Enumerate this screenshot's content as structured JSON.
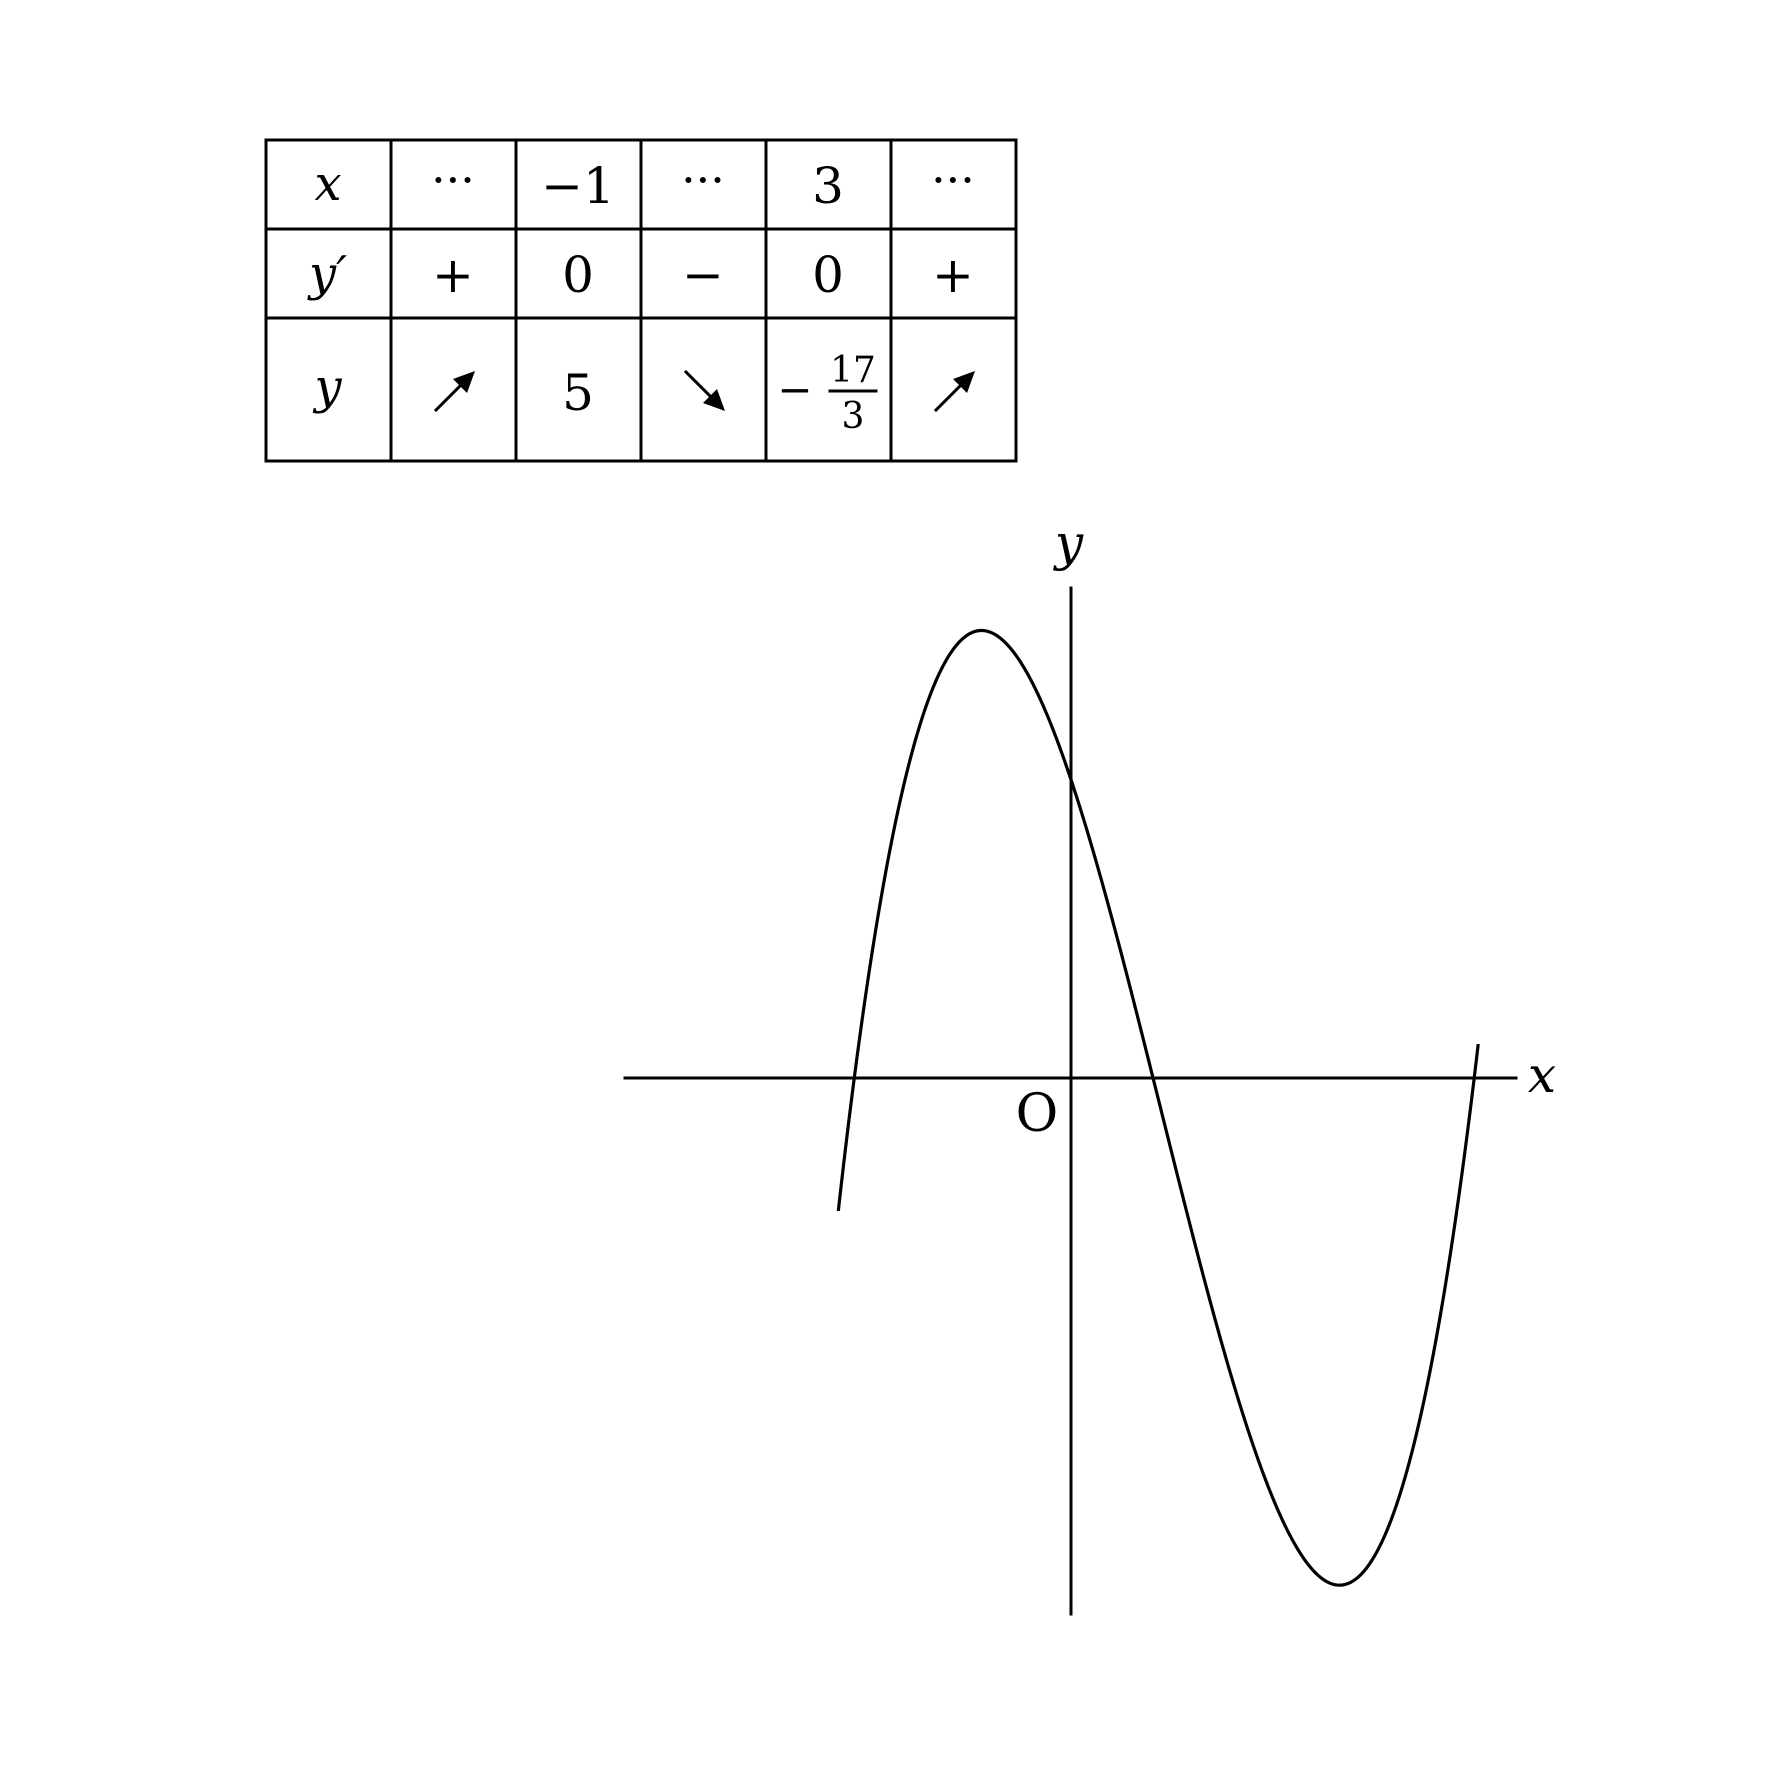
{
  "table": {
    "row_labels": {
      "x": "x",
      "dy": "y′",
      "y": "y"
    },
    "x_row": [
      "···",
      "−1",
      "···",
      "3",
      "···"
    ],
    "dy_row": [
      "+",
      "0",
      "−",
      "0",
      "+"
    ],
    "y_row": {
      "c1": "increasing",
      "c2": "5",
      "c3": "decreasing",
      "c4": {
        "sign": "−",
        "numerator": "17",
        "denominator": "3"
      },
      "c5": "increasing"
    }
  },
  "graph": {
    "x_axis_label": "x",
    "y_axis_label": "y",
    "origin_label": "O",
    "function": "y = x^3/3 - x^2 - 3x + 10/3",
    "x_range": [
      -2.6,
      4.55
    ],
    "extrema": [
      {
        "x": -1,
        "y": 5,
        "kind": "max"
      },
      {
        "x": 3,
        "y": -5.667,
        "kind": "min"
      }
    ]
  }
}
